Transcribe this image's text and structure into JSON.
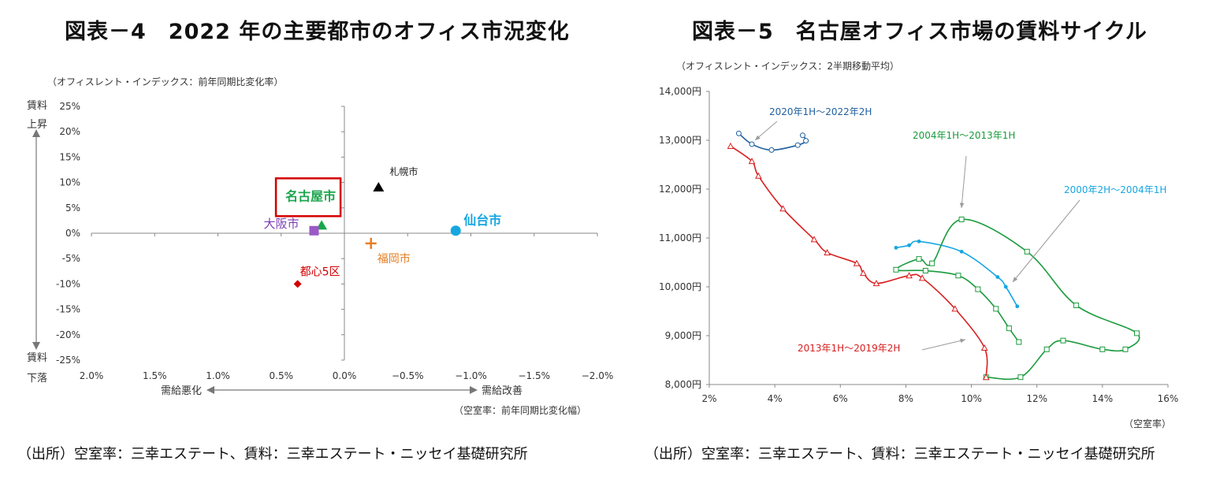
{
  "left": {
    "title": "図表－4　2022 年の主要都市のオフィス市況変化",
    "y_note": "（オフィスレント・インデックス：前年同期比変化率）",
    "x_note": "（空室率：前年同期比変化幅）",
    "y_top_label": [
      "賃料",
      "上昇"
    ],
    "y_bottom_label": [
      "賃料",
      "下落"
    ],
    "x_left_label": "需給悪化",
    "x_right_label": "需給改善",
    "source": "（出所）空室率：三幸エステート、賃料：三幸エステート・ニッセイ基礎研究所"
  },
  "right": {
    "title": "図表－5　名古屋オフィス市場の賃料サイクル",
    "y_note": "（オフィスレント・インデックス：2半期移動平均）",
    "x_note": "（空室率）",
    "source": "（出所）空室率：三幸エステート、賃料：三幸エステート・ニッセイ基礎研究所"
  },
  "chart_data": [
    {
      "type": "scatter",
      "title": "図表－4　2022 年の主要都市のオフィス市況変化",
      "xlabel": "（空室率：前年同期比変化幅）",
      "ylabel": "（オフィスレント・インデックス：前年同期比変化率）",
      "x_reversed": true,
      "xlim": [
        2.0,
        -2.0
      ],
      "ylim": [
        -25,
        25
      ],
      "x_ticks": [
        2.0,
        1.5,
        1.0,
        0.5,
        0.0,
        -0.5,
        -1.0,
        -1.5,
        -2.0
      ],
      "x_tick_labels": [
        "2.0%",
        "1.5%",
        "1.0%",
        "0.5%",
        "0.0%",
        "−0.5%",
        "−1.0%",
        "−1.5%",
        "−2.0%"
      ],
      "y_ticks": [
        25,
        20,
        15,
        10,
        5,
        0,
        -5,
        -10,
        -15,
        -20,
        -25
      ],
      "y_tick_labels": [
        "25%",
        "20%",
        "15%",
        "10%",
        "5%",
        "0%",
        "-5%",
        "-10%",
        "-15%",
        "-20%",
        "-25%"
      ],
      "grid": false,
      "points": [
        {
          "name": "札幌市",
          "x": -0.27,
          "y": 9.0,
          "marker": "triangle",
          "color": "#000000"
        },
        {
          "name": "仙台市",
          "x": -0.88,
          "y": 0.5,
          "marker": "circle",
          "color": "#16a6e0"
        },
        {
          "name": "名古屋市",
          "x": 0.18,
          "y": 1.5,
          "marker": "triangle",
          "color": "#1aa64b"
        },
        {
          "name": "大阪市",
          "x": 0.24,
          "y": 0.5,
          "marker": "square",
          "color": "#9b59c6"
        },
        {
          "name": "福岡市",
          "x": -0.21,
          "y": -2.0,
          "marker": "plus",
          "color": "#e67e22"
        },
        {
          "name": "都心5区",
          "x": 0.37,
          "y": -10.0,
          "marker": "diamond",
          "color": "#d40000"
        }
      ],
      "highlight": "名古屋市",
      "highlight_color": "#d40000"
    },
    {
      "type": "line",
      "title": "図表－5　名古屋オフィス市場の賃料サイクル",
      "xlabel": "（空室率）",
      "ylabel": "（オフィスレント・インデックス：2半期移動平均）",
      "xlim": [
        2,
        16
      ],
      "ylim": [
        8000,
        14000
      ],
      "x_ticks": [
        2,
        4,
        6,
        8,
        10,
        12,
        14,
        16
      ],
      "x_tick_labels": [
        "2%",
        "4%",
        "6%",
        "8%",
        "10%",
        "12%",
        "14%",
        "16%"
      ],
      "y_ticks": [
        8000,
        9000,
        10000,
        11000,
        12000,
        13000,
        14000
      ],
      "y_tick_labels": [
        "8,000円",
        "9,000円",
        "10,000円",
        "11,000円",
        "12,000円",
        "13,000円",
        "14,000円"
      ],
      "grid": false,
      "series": [
        {
          "name": "2000年2H～2004年1H",
          "color": "#16a6e0",
          "marker": "asterisk",
          "points": [
            [
              7.7,
              10800
            ],
            [
              8.1,
              10850
            ],
            [
              8.4,
              10930
            ],
            [
              9.7,
              10720
            ],
            [
              10.8,
              10200
            ],
            [
              11.05,
              10000
            ],
            [
              11.4,
              9600
            ]
          ]
        },
        {
          "name": "2004年1H～2013年1H",
          "color": "#1a9b3c",
          "marker": "square",
          "points": [
            [
              11.45,
              8870
            ],
            [
              11.15,
              9150
            ],
            [
              10.75,
              9550
            ],
            [
              10.2,
              9950
            ],
            [
              9.6,
              10230
            ],
            [
              8.6,
              10330
            ],
            [
              7.7,
              10350
            ],
            [
              8.4,
              10570
            ],
            [
              8.8,
              10480
            ],
            [
              9.7,
              11380
            ],
            [
              11.7,
              10720
            ],
            [
              13.2,
              9620
            ],
            [
              15.05,
              9050
            ],
            [
              14.7,
              8720
            ],
            [
              14.0,
              8720
            ],
            [
              12.8,
              8900
            ],
            [
              12.3,
              8720
            ],
            [
              11.5,
              8150
            ],
            [
              10.45,
              8150
            ]
          ]
        },
        {
          "name": "2013年1H～2019年2H",
          "color": "#d91e1e",
          "marker": "triangle",
          "points": [
            [
              10.45,
              8150
            ],
            [
              10.4,
              8750
            ],
            [
              9.5,
              9550
            ],
            [
              8.5,
              10180
            ],
            [
              8.1,
              10230
            ],
            [
              7.1,
              10070
            ],
            [
              6.7,
              10280
            ],
            [
              6.5,
              10480
            ],
            [
              5.6,
              10700
            ],
            [
              5.2,
              10970
            ],
            [
              4.25,
              11600
            ],
            [
              3.5,
              12270
            ],
            [
              3.3,
              12570
            ],
            [
              2.65,
              12880
            ]
          ]
        },
        {
          "name": "2020年1H～2022年2H",
          "color": "#1f5f9e",
          "marker": "circle",
          "points": [
            [
              2.9,
              13140
            ],
            [
              3.3,
              12920
            ],
            [
              3.9,
              12800
            ],
            [
              4.7,
              12900
            ],
            [
              4.95,
              12990
            ],
            [
              4.85,
              13100
            ]
          ]
        }
      ]
    }
  ]
}
